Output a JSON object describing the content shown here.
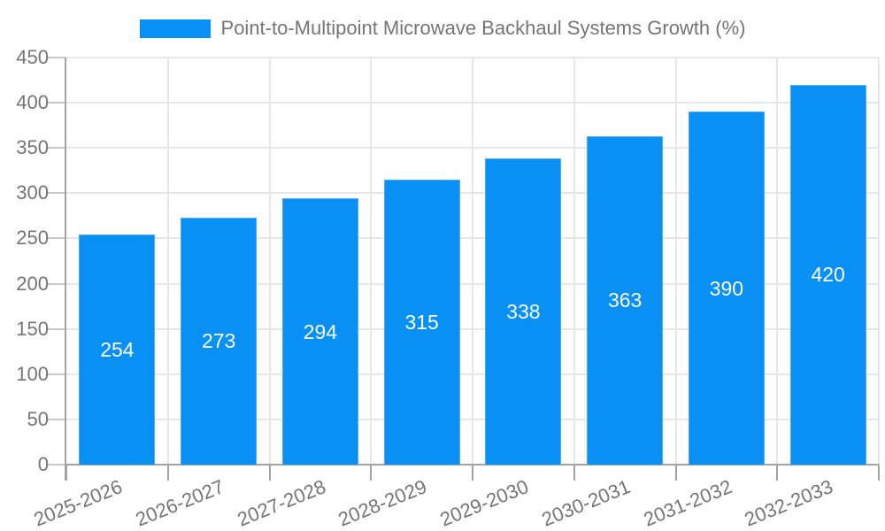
{
  "legend": {
    "label": "Point-to-Multipoint Microwave Backhaul Systems Growth (%)"
  },
  "chart_data": {
    "type": "bar",
    "title": "Point-to-Multipoint Microwave Backhaul Systems Growth (%)",
    "categories": [
      "2025-2026",
      "2026-2027",
      "2027-2028",
      "2028-2029",
      "2029-2030",
      "2030-2031",
      "2031-2032",
      "2032-2033"
    ],
    "values": [
      254,
      273,
      294,
      315,
      338,
      363,
      390,
      420
    ],
    "xlabel": "",
    "ylabel": "",
    "ylim": [
      0,
      450
    ],
    "yticks": [
      0,
      50,
      100,
      150,
      200,
      250,
      300,
      350,
      400,
      450
    ],
    "grid": true,
    "legend_position": "top-center",
    "bar_color": "#0890f5",
    "bar_edge_color": "#4caaf6",
    "bar_label_color": "#ffffff",
    "axis_text_color": "#757575",
    "grid_color": "#e7e7e7",
    "axis_line_color": "#a3a3a3"
  }
}
